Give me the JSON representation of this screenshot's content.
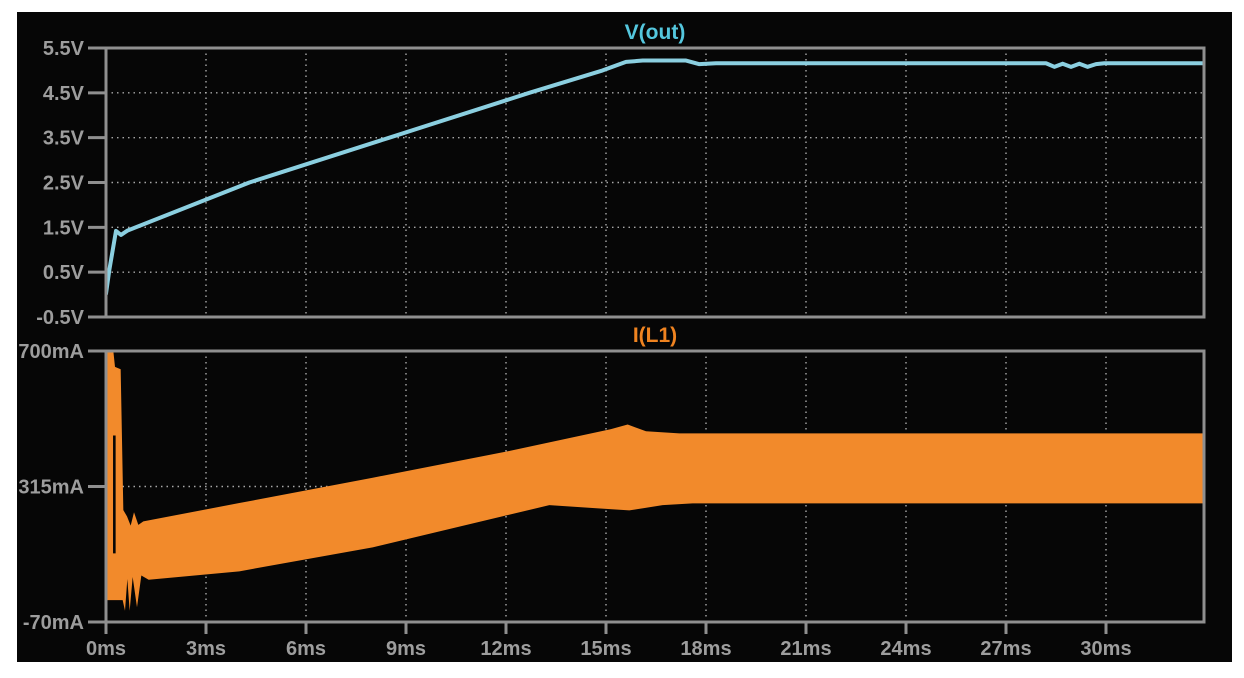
{
  "window": {
    "background": "#ffffff"
  },
  "chart_data": {
    "type": "line",
    "x": {
      "unit": "ms",
      "min": 0,
      "max": 32.94,
      "ticks": [
        0,
        3,
        6,
        9,
        12,
        15,
        18,
        21,
        24,
        27,
        30
      ],
      "tick_labels": [
        "0ms",
        "3ms",
        "6ms",
        "9ms",
        "12ms",
        "15ms",
        "18ms",
        "21ms",
        "24ms",
        "27ms",
        "30ms"
      ],
      "grid": [
        3,
        6,
        9,
        12,
        15,
        18,
        21,
        24,
        27,
        30
      ]
    },
    "colors": {
      "canvas": "#060606",
      "frame": "#8f8f8f",
      "grid": "#c4c4c4",
      "labels": "#9d9d9d",
      "notch": "#060606"
    },
    "panels": [
      {
        "title": "V(out)",
        "title_color": "#54c7de",
        "unit": "V",
        "ylim": [
          -0.5,
          5.5
        ],
        "yticks": [
          {
            "value": 5.5,
            "label": "5.5V"
          },
          {
            "value": 4.5,
            "label": "4.5V"
          },
          {
            "value": 3.5,
            "label": "3.5V"
          },
          {
            "value": 2.5,
            "label": "2.5V"
          },
          {
            "value": 1.5,
            "label": "1.5V"
          },
          {
            "value": 0.5,
            "label": "0.5V"
          },
          {
            "value": -0.5,
            "label": "-0.5V"
          }
        ],
        "grid_y": [
          4.5,
          3.5,
          2.5,
          1.5,
          0.5
        ],
        "trace": {
          "name": "V(out)",
          "color": "#8bcfe0",
          "width": 4,
          "points": [
            [
              0,
              0.02
            ],
            [
              0.1,
              0.55
            ],
            [
              0.3,
              1.42
            ],
            [
              0.45,
              1.33
            ],
            [
              0.65,
              1.43
            ],
            [
              4.3,
              2.5
            ],
            [
              8.5,
              3.5
            ],
            [
              12.7,
              4.5
            ],
            [
              14.9,
              5.0
            ],
            [
              15.6,
              5.19
            ],
            [
              16.1,
              5.22
            ],
            [
              17.4,
              5.22
            ],
            [
              17.8,
              5.14
            ],
            [
              18.3,
              5.16
            ],
            [
              28.2,
              5.16
            ],
            [
              28.45,
              5.08
            ],
            [
              28.7,
              5.15
            ],
            [
              28.95,
              5.08
            ],
            [
              29.2,
              5.15
            ],
            [
              29.45,
              5.08
            ],
            [
              29.7,
              5.14
            ],
            [
              29.95,
              5.16
            ],
            [
              32.94,
              5.16
            ]
          ]
        }
      },
      {
        "title": "I(L1)",
        "title_color": "#ef8320",
        "unit": "mA",
        "ylim": [
          -70,
          700
        ],
        "yticks": [
          {
            "value": 700,
            "label": "700mA"
          },
          {
            "value": 315,
            "label": "315mA"
          },
          {
            "value": -70,
            "label": "-70mA"
          }
        ],
        "grid_y": [
          315
        ],
        "band": {
          "name": "I(L1)",
          "color": "#f28a2b",
          "top": [
            [
              0,
              700
            ],
            [
              0.22,
              700
            ],
            [
              0.27,
              655
            ],
            [
              0.44,
              648
            ],
            [
              0.52,
              248
            ],
            [
              0.63,
              230
            ],
            [
              0.74,
              204
            ],
            [
              0.84,
              242
            ],
            [
              0.97,
              206
            ],
            [
              1.12,
              216
            ],
            [
              4,
              268
            ],
            [
              8,
              340
            ],
            [
              12,
              414
            ],
            [
              15.15,
              478
            ],
            [
              15.65,
              491
            ],
            [
              16.2,
              472
            ],
            [
              17.2,
              466
            ],
            [
              32.94,
              466
            ]
          ],
          "bottom": [
            [
              0,
              -8
            ],
            [
              0.5,
              -8
            ],
            [
              0.57,
              -38
            ],
            [
              0.64,
              52
            ],
            [
              0.71,
              -38
            ],
            [
              0.8,
              58
            ],
            [
              0.93,
              -28
            ],
            [
              1.06,
              62
            ],
            [
              1.28,
              50
            ],
            [
              4,
              74
            ],
            [
              8,
              142
            ],
            [
              13.3,
              262
            ],
            [
              15.7,
              247
            ],
            [
              16.7,
              262
            ],
            [
              17.6,
              267
            ],
            [
              32.94,
              267
            ]
          ]
        },
        "notch": {
          "t": 0.25,
          "from": 460,
          "to": 125
        }
      }
    ]
  }
}
